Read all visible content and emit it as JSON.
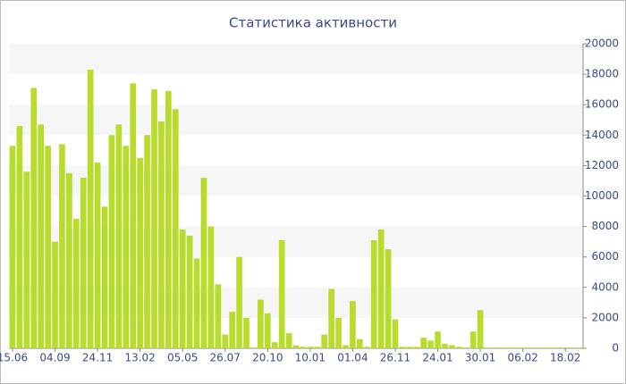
{
  "chart_data": {
    "type": "bar",
    "title": "Статистика активности",
    "categories": [
      "15.06",
      null,
      null,
      null,
      null,
      null,
      "04.09",
      null,
      null,
      null,
      null,
      null,
      "24.11",
      null,
      null,
      null,
      null,
      null,
      "13.02",
      null,
      null,
      null,
      null,
      null,
      "05.05",
      null,
      null,
      null,
      null,
      null,
      "26.07",
      null,
      null,
      null,
      null,
      null,
      "20.10",
      null,
      null,
      null,
      null,
      null,
      "10.01",
      null,
      null,
      null,
      null,
      null,
      "01.04",
      null,
      null,
      null,
      null,
      null,
      "26.11",
      null,
      null,
      null,
      null,
      null,
      "24.01",
      null,
      null,
      null,
      null,
      null,
      "30.01",
      null,
      null,
      null,
      null,
      null,
      "06.02",
      null,
      null,
      null,
      null,
      null,
      "18.02",
      null,
      null
    ],
    "values": [
      13300,
      14600,
      11600,
      17100,
      14700,
      13300,
      7000,
      13400,
      11500,
      8500,
      11200,
      18300,
      12200,
      9300,
      14000,
      14700,
      13300,
      17400,
      12500,
      14000,
      17000,
      14900,
      16900,
      15700,
      7800,
      7400,
      5900,
      11200,
      8000,
      4200,
      900,
      2400,
      6000,
      2000,
      50,
      3200,
      2300,
      400,
      7100,
      1000,
      200,
      100,
      100,
      100,
      900,
      3900,
      2000,
      200,
      3100,
      600,
      100,
      7100,
      7800,
      6500,
      1900,
      100,
      100,
      100,
      700,
      500,
      1100,
      300,
      200,
      100,
      50,
      1100,
      2500,
      50,
      50,
      50,
      50,
      50,
      50,
      50,
      50,
      50,
      50,
      50,
      50,
      50,
      50
    ],
    "color": "#b8dc2c",
    "ylim": [
      0,
      20000
    ],
    "yticks": [
      0,
      2000,
      4000,
      6000,
      8000,
      10000,
      12000,
      14000,
      16000,
      18000,
      20000
    ],
    "grid": "bands"
  }
}
